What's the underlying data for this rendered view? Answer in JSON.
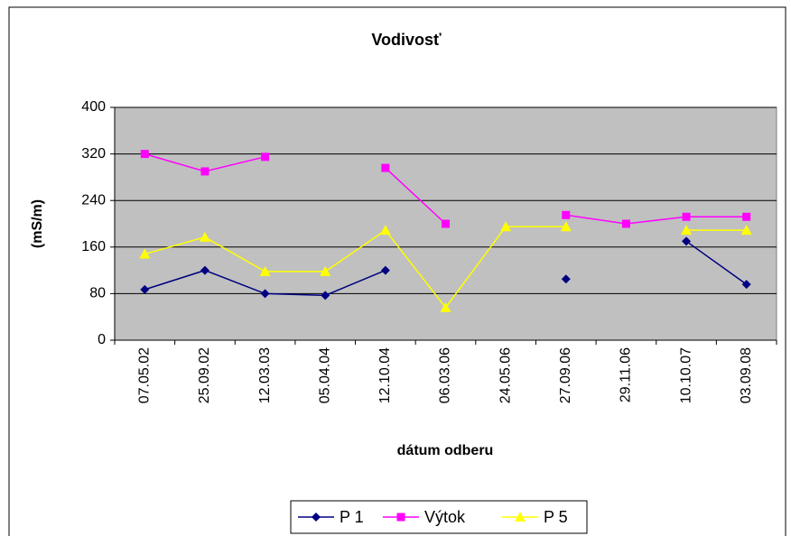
{
  "chart_data": {
    "type": "line",
    "title": "Vodivosť",
    "x_label": "dátum odberu",
    "y_label": "(mS/m)",
    "categories": [
      "07.05.02",
      "25.09.02",
      "12.03.03",
      "05.04.04",
      "12.10.04",
      "06.03.06",
      "24.05.06",
      "27.09.06",
      "29.11.06",
      "10.10.07",
      "03.09.08"
    ],
    "series": [
      {
        "name": "P 1",
        "color": "#000080",
        "marker": "diamond",
        "values": [
          87,
          120,
          80,
          77,
          120,
          null,
          null,
          105,
          null,
          170,
          96
        ]
      },
      {
        "name": "Výtok",
        "color": "#ff00ff",
        "marker": "square",
        "values": [
          320,
          290,
          315,
          null,
          296,
          200,
          null,
          215,
          200,
          212,
          212
        ]
      },
      {
        "name": "P 5",
        "color": "#ffff00",
        "marker": "triangle",
        "values": [
          148,
          177,
          118,
          118,
          189,
          56,
          195,
          195,
          null,
          189,
          189
        ]
      }
    ],
    "ylim": [
      0,
      400
    ],
    "yticks": [
      0,
      80,
      160,
      240,
      320,
      400
    ],
    "grid": true,
    "legend": "bottom"
  }
}
